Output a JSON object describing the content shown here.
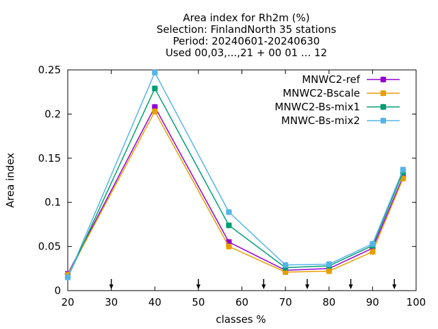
{
  "chart_data": {
    "type": "line",
    "title_lines": [
      "Area index  for Rh2m (%)",
      "Selection: FinlandNorth     35 stations",
      "Period: 20240601-20240630",
      "Used 00,03,...,21 + 00 01 ... 12"
    ],
    "xlabel": "classes %",
    "ylabel": "Area index",
    "xlim": [
      20,
      100
    ],
    "ylim": [
      0,
      0.25
    ],
    "xticks": [
      "20",
      "30",
      "40",
      "50",
      "60",
      "70",
      "80",
      "90",
      "100"
    ],
    "yticks": [
      "0",
      "0.05",
      "0.1",
      "0.15",
      "0.2",
      "0.25"
    ],
    "legend_position": "top-right",
    "grid": false,
    "x": [
      20,
      40,
      57,
      70,
      80,
      90,
      97
    ],
    "series": [
      {
        "name": "MNWC2-ref",
        "color": "#9400d3",
        "values": [
          0.019,
          0.208,
          0.055,
          0.023,
          0.025,
          0.048,
          0.129
        ]
      },
      {
        "name": "MNWC2-Bscale",
        "color": "#e69f00",
        "values": [
          0.018,
          0.203,
          0.05,
          0.021,
          0.022,
          0.044,
          0.127
        ]
      },
      {
        "name": "MNWC2-Bs-mix1",
        "color": "#009e73",
        "values": [
          0.015,
          0.229,
          0.074,
          0.026,
          0.028,
          0.051,
          0.134
        ]
      },
      {
        "name": "MNWC-Bs-mix2",
        "color": "#56b4e9",
        "values": [
          0.015,
          0.247,
          0.089,
          0.029,
          0.03,
          0.053,
          0.137
        ]
      }
    ],
    "arrow_markers_x": [
      30,
      50,
      65,
      75,
      85,
      95
    ]
  }
}
